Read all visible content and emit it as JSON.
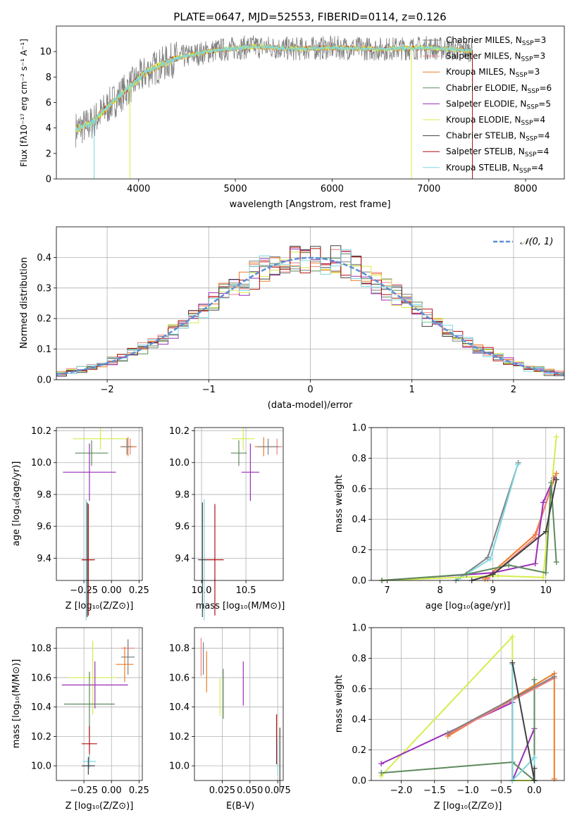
{
  "colors": {
    "chabrier_miles": "#808080",
    "salpeter_miles": "#f08080",
    "kroupa_miles": "#ee7a24",
    "chabrier_elodie": "#5c8a5c",
    "salpeter_elodie": "#9a2eb8",
    "kroupa_elodie": "#d6ec4a",
    "chabrier_stelib": "#404040",
    "salpeter_stelib": "#b01010",
    "kroupa_stelib": "#7ed7e0",
    "normal_curve": "#5b8fd6"
  },
  "chart_data": [
    {
      "id": "spectrum",
      "type": "line",
      "title": "PLATE=0647, MJD=52553, FIBERID=0114, z=0.126",
      "xlabel": "wavelength [Angstrom, rest frame]",
      "ylabel": "Flux [fλ10⁻¹⁷ erg cm⁻² s⁻¹ A⁻¹]",
      "xlim": [
        3150,
        8400
      ],
      "ylim": [
        0,
        12
      ],
      "xticks": [
        "4000",
        "5000",
        "6000",
        "7000",
        "8000"
      ],
      "yticks": [
        "0",
        "2",
        "4",
        "6",
        "8",
        "10"
      ],
      "legend_position": "top-right",
      "legend": [
        {
          "name": "Chabrier MILES, N",
          "sub": "SSP",
          "tail": "=3"
        },
        {
          "name": "Salpeter MILES, N",
          "sub": "SSP",
          "tail": "=3"
        },
        {
          "name": "Kroupa MILES, N",
          "sub": "SSP",
          "tail": "=3"
        },
        {
          "name": "Chabrier ELODIE, N",
          "sub": "SSP",
          "tail": "=6"
        },
        {
          "name": "Salpeter ELODIE, N",
          "sub": "SSP",
          "tail": "=5"
        },
        {
          "name": "Kroupa ELODIE, N",
          "sub": "SSP",
          "tail": "=4"
        },
        {
          "name": "Chabrier STELIB, N",
          "sub": "SSP",
          "tail": "=4"
        },
        {
          "name": "Salpeter STELIB, N",
          "sub": "SSP",
          "tail": "=4"
        },
        {
          "name": "Kroupa STELIB, N",
          "sub": "SSP",
          "tail": "=4"
        }
      ],
      "data_trend": {
        "x": [
          3350,
          3500,
          3700,
          3900,
          4100,
          4400,
          4800,
          5200,
          5600,
          6000,
          6500,
          7000,
          7400
        ],
        "y": [
          3.9,
          4.3,
          5.8,
          7.2,
          8.5,
          9.5,
          10.1,
          10.4,
          10.2,
          10.3,
          10.2,
          10.3,
          10.1
        ]
      }
    },
    {
      "id": "residuals",
      "type": "line",
      "xlabel": "(data-model)/error",
      "ylabel": "Normed distribution",
      "xlim": [
        -2.5,
        2.5
      ],
      "ylim": [
        0,
        0.5
      ],
      "xticks": [
        "−2",
        "−1",
        "0",
        "1",
        "2"
      ],
      "yticks": [
        "0.0",
        "0.1",
        "0.2",
        "0.3",
        "0.4"
      ],
      "legend_position": "top-right",
      "legend": [
        {
          "name": "𝒩(0, 1)"
        }
      ],
      "bin_width": 0.1
    },
    {
      "id": "age-vs-z",
      "type": "scatter",
      "xlabel": "Z [log₁₀(Z/Z⊙)]",
      "ylabel": "age  [log₁₀(age/yr)]",
      "xlim": [
        -0.5,
        0.28
      ],
      "ylim": [
        9.26,
        10.22
      ],
      "xticks": [
        "−0.25",
        "0.00",
        "0.25"
      ],
      "yticks": [
        "9.4",
        "9.6",
        "9.8",
        "10.0",
        "10.2"
      ],
      "points": [
        {
          "model": "kroupa_elodie",
          "x": -0.1,
          "y": 10.15,
          "ex": 0.25,
          "ey": 0.07
        },
        {
          "model": "salpeter_miles",
          "x": 0.17,
          "y": 10.1,
          "ex": 0.06,
          "ey": 0.05
        },
        {
          "model": "kroupa_miles",
          "x": 0.15,
          "y": 10.1,
          "ex": 0.07,
          "ey": 0.06
        },
        {
          "model": "chabrier_miles",
          "x": 0.14,
          "y": 10.1,
          "ex": 0.05,
          "ey": 0.05
        },
        {
          "model": "chabrier_elodie",
          "x": -0.18,
          "y": 10.06,
          "ex": 0.15,
          "ey": 0.08
        },
        {
          "model": "salpeter_elodie",
          "x": -0.2,
          "y": 9.94,
          "ex": 0.24,
          "ey": 0.18
        },
        {
          "model": "kroupa_stelib",
          "x": -0.23,
          "y": 9.39,
          "ex": 0.04,
          "ey": 0.38
        },
        {
          "model": "chabrier_stelib",
          "x": -0.22,
          "y": 9.39,
          "ex": 0.05,
          "ey": 0.36
        },
        {
          "model": "salpeter_stelib",
          "x": -0.21,
          "y": 9.39,
          "ex": 0.06,
          "ey": 0.35
        }
      ]
    },
    {
      "id": "age-vs-mass",
      "type": "scatter",
      "xlabel": "mass [log₁₀(M/M⊙)]",
      "ylabel": "",
      "xlim": [
        9.92,
        10.92
      ],
      "ylim": [
        9.26,
        10.22
      ],
      "xticks": [
        "10.0",
        "10.5"
      ],
      "yticks": [
        "9.4",
        "9.6",
        "9.8",
        "10.0",
        "10.2"
      ],
      "points": [
        {
          "model": "kroupa_elodie",
          "x": 10.47,
          "y": 10.15,
          "ex": 0.13,
          "ey": 0.07
        },
        {
          "model": "salpeter_miles",
          "x": 10.85,
          "y": 10.1,
          "ex": 0.06,
          "ey": 0.05
        },
        {
          "model": "kroupa_miles",
          "x": 10.7,
          "y": 10.1,
          "ex": 0.1,
          "ey": 0.06
        },
        {
          "model": "chabrier_miles",
          "x": 10.75,
          "y": 10.1,
          "ex": 0.12,
          "ey": 0.05
        },
        {
          "model": "chabrier_elodie",
          "x": 10.42,
          "y": 10.06,
          "ex": 0.09,
          "ey": 0.08
        },
        {
          "model": "salpeter_elodie",
          "x": 10.55,
          "y": 9.94,
          "ex": 0.1,
          "ey": 0.18
        },
        {
          "model": "kroupa_stelib",
          "x": 10.03,
          "y": 9.39,
          "ex": 0.05,
          "ey": 0.38
        },
        {
          "model": "chabrier_stelib",
          "x": 10.01,
          "y": 9.39,
          "ex": 0.05,
          "ey": 0.36
        },
        {
          "model": "salpeter_stelib",
          "x": 10.15,
          "y": 9.39,
          "ex": 0.1,
          "ey": 0.35
        }
      ]
    },
    {
      "id": "mass-weight-vs-age",
      "type": "line",
      "xlabel": "age  [log₁₀(age/yr)]",
      "ylabel": "mass weight",
      "xlim": [
        6.7,
        10.35
      ],
      "ylim": [
        0,
        1
      ],
      "xticks": [
        "7",
        "8",
        "9",
        "10"
      ],
      "yticks": [
        "0.0",
        "0.2",
        "0.4",
        "0.6",
        "0.8",
        "1.0"
      ],
      "series": [
        {
          "model": "chabrier_miles",
          "x": [
            8.3,
            8.9,
            9.48
          ],
          "y": [
            0.0,
            0.15,
            0.77
          ]
        },
        {
          "model": "kroupa_stelib",
          "x": [
            8.35,
            8.95,
            9.47
          ],
          "y": [
            0.01,
            0.14,
            0.76
          ]
        },
        {
          "model": "kroupa_miles",
          "x": [
            8.85,
            9.8,
            10.2
          ],
          "y": [
            0.01,
            0.3,
            0.7
          ]
        },
        {
          "model": "salpeter_miles",
          "x": [
            8.9,
            9.8,
            10.15
          ],
          "y": [
            0.01,
            0.28,
            0.67
          ]
        },
        {
          "model": "salpeter_elodie",
          "x": [
            6.9,
            9.0,
            9.8,
            9.95,
            10.15
          ],
          "y": [
            0.0,
            0.05,
            0.11,
            0.51,
            0.67
          ]
        },
        {
          "model": "kroupa_elodie",
          "x": [
            6.9,
            9.1,
            9.95,
            10.2
          ],
          "y": [
            0.0,
            0.03,
            0.02,
            0.94
          ]
        },
        {
          "model": "chabrier_elodie",
          "x": [
            6.9,
            8.5,
            9.3,
            10.0,
            10.1,
            10.2
          ],
          "y": [
            0.0,
            0.04,
            0.1,
            0.05,
            0.64,
            0.12
          ]
        },
        {
          "model": "chabrier_stelib",
          "x": [
            8.6,
            9.0,
            10.0,
            10.2
          ],
          "y": [
            0.0,
            0.04,
            0.32,
            0.66
          ]
        }
      ]
    },
    {
      "id": "mass-vs-z",
      "type": "scatter",
      "xlabel": "Z [log₁₀(Z/Z⊙)]",
      "ylabel": "mass [log₁₀(M/M⊙)]",
      "xlim": [
        -0.5,
        0.28
      ],
      "ylim": [
        9.9,
        10.94
      ],
      "xticks": [
        "−0.25",
        "0.00",
        "0.25"
      ],
      "yticks": [
        "10.0",
        "10.2",
        "10.4",
        "10.6",
        "10.8"
      ],
      "points": [
        {
          "model": "salpeter_miles",
          "x": 0.15,
          "y": 10.8,
          "ex": 0.06,
          "ey": 0.06
        },
        {
          "model": "chabrier_miles",
          "x": 0.15,
          "y": 10.74,
          "ex": 0.06,
          "ey": 0.12
        },
        {
          "model": "kroupa_miles",
          "x": 0.12,
          "y": 10.69,
          "ex": 0.08,
          "ey": 0.12
        },
        {
          "model": "kroupa_elodie",
          "x": -0.17,
          "y": 10.6,
          "ex": 0.22,
          "ey": 0.25
        },
        {
          "model": "salpeter_elodie",
          "x": -0.15,
          "y": 10.55,
          "ex": 0.3,
          "ey": 0.16
        },
        {
          "model": "chabrier_elodie",
          "x": -0.2,
          "y": 10.42,
          "ex": 0.23,
          "ey": 0.22
        },
        {
          "model": "salpeter_stelib",
          "x": -0.2,
          "y": 10.15,
          "ex": 0.07,
          "ey": 0.12
        },
        {
          "model": "kroupa_stelib",
          "x": -0.2,
          "y": 10.03,
          "ex": 0.06,
          "ey": 0.05
        },
        {
          "model": "chabrier_stelib",
          "x": -0.21,
          "y": 10.0,
          "ex": 0.06,
          "ey": 0.06
        }
      ]
    },
    {
      "id": "mass-vs-ebv",
      "type": "scatter",
      "xlabel": "E(B-V)",
      "ylabel": "",
      "xlim": [
        0.0,
        0.08
      ],
      "ylim": [
        9.9,
        10.94
      ],
      "xticks": [
        "0.025",
        "0.050",
        "0.075"
      ],
      "yticks": [
        "10.0",
        "10.2",
        "10.4",
        "10.6",
        "10.8"
      ],
      "points": [
        {
          "model": "salpeter_miles",
          "x": 0.006,
          "y": 10.74,
          "ex": 0,
          "ey": 0.13
        },
        {
          "model": "chabrier_miles",
          "x": 0.008,
          "y": 10.73,
          "ex": 0,
          "ey": 0.11
        },
        {
          "model": "kroupa_miles",
          "x": 0.011,
          "y": 10.64,
          "ex": 0,
          "ey": 0.14
        },
        {
          "model": "kroupa_elodie",
          "x": 0.023,
          "y": 10.47,
          "ex": 0,
          "ey": 0.13
        },
        {
          "model": "chabrier_elodie",
          "x": 0.026,
          "y": 10.49,
          "ex": 0,
          "ey": 0.17
        },
        {
          "model": "salpeter_elodie",
          "x": 0.044,
          "y": 10.56,
          "ex": 0,
          "ey": 0.15
        },
        {
          "model": "salpeter_stelib",
          "x": 0.074,
          "y": 10.18,
          "ex": 0,
          "ey": 0.17
        },
        {
          "model": "kroupa_stelib",
          "x": 0.075,
          "y": 10.06,
          "ex": 0,
          "ey": 0.12
        },
        {
          "model": "chabrier_stelib",
          "x": 0.077,
          "y": 10.04,
          "ex": 0,
          "ey": 0.22
        }
      ]
    },
    {
      "id": "mass-weight-vs-z",
      "type": "line",
      "xlabel": "Z [log₁₀(Z/Z⊙)]",
      "ylabel": "mass weight",
      "xlim": [
        -2.45,
        0.45
      ],
      "ylim": [
        0,
        1
      ],
      "xticks": [
        "−2.0",
        "−1.5",
        "−1.0",
        "−0.5",
        "0.0"
      ],
      "yticks": [
        "0.0",
        "0.2",
        "0.4",
        "0.6",
        "0.8",
        "1.0"
      ],
      "series": [
        {
          "model": "kroupa_elodie",
          "x": [
            -2.3,
            -0.33,
            -0.33,
            0.0
          ],
          "y": [
            0.03,
            0.94,
            0.0,
            0.0
          ]
        },
        {
          "model": "salpeter_elodie",
          "x": [
            -2.3,
            -0.33,
            -0.33,
            0.0,
            0.0
          ],
          "y": [
            0.11,
            0.51,
            0.0,
            0.34,
            0.0
          ]
        },
        {
          "model": "chabrier_elodie",
          "x": [
            -2.3,
            -0.33,
            0.0,
            0.0,
            0.0
          ],
          "y": [
            0.05,
            0.12,
            0.0,
            0.66,
            0.0
          ]
        },
        {
          "model": "kroupa_miles",
          "x": [
            -1.3,
            0.3,
            0.3
          ],
          "y": [
            0.29,
            0.7,
            0.01
          ]
        },
        {
          "model": "salpeter_miles",
          "x": [
            -1.3,
            0.3
          ],
          "y": [
            0.3,
            0.67
          ]
        },
        {
          "model": "chabrier_miles",
          "x": [
            -1.3,
            0.3
          ],
          "y": [
            0.31,
            0.68
          ]
        },
        {
          "model": "kroupa_stelib",
          "x": [
            -0.33,
            -0.33,
            0.0,
            0.0
          ],
          "y": [
            0.76,
            0.0,
            0.15,
            0.0
          ]
        },
        {
          "model": "chabrier_stelib",
          "x": [
            -0.33,
            0.0,
            0.0
          ],
          "y": [
            0.77,
            0.0,
            0.08
          ]
        }
      ]
    }
  ]
}
